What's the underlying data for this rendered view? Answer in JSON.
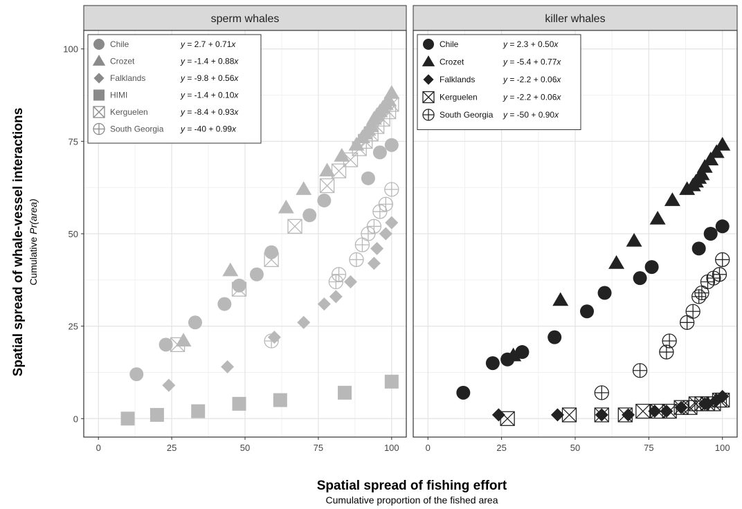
{
  "y_axis_title": "Spatial spread of whale-vessel interactions",
  "y_axis_subtitle_prefix": "Cumulative ",
  "y_axis_subtitle_italic": "Pr(area)",
  "x_axis_title": "Spatial spread of fishing effort",
  "x_axis_subtitle": "Cumulative proportion of the fished area",
  "chart_data": [
    {
      "type": "scatter",
      "title": "sperm whales",
      "xlim": [
        -5,
        105
      ],
      "ylim": [
        -5,
        105
      ],
      "x_ticks": [
        0,
        25,
        50,
        75,
        100
      ],
      "y_ticks": [
        0,
        25,
        50,
        75,
        100
      ],
      "x_tick_labels": [
        "0",
        "25",
        "50",
        "75",
        "100"
      ],
      "y_tick_labels": [
        "0",
        "25",
        "50",
        "75",
        "100"
      ],
      "grid": true,
      "legend_position": "top-left",
      "colors": {
        "points": "#b8b8b8",
        "legend_symbols": "#8a8a8a"
      },
      "series": [
        {
          "name": "Chile",
          "symbol": "circle",
          "equation": "y = 2.7 + 0.71x",
          "x": [
            13,
            23,
            33,
            43,
            48,
            54,
            59,
            72,
            77,
            92,
            96,
            100
          ],
          "y": [
            12,
            20,
            26,
            31,
            36,
            39,
            45,
            55,
            59,
            65,
            72,
            74
          ]
        },
        {
          "name": "Crozet",
          "symbol": "triangle",
          "equation": "y = -1.4 + 0.88x",
          "x": [
            29,
            45,
            64,
            70,
            78,
            83,
            88,
            90,
            91,
            92,
            93,
            94,
            95,
            96,
            97,
            98,
            99,
            100
          ],
          "y": [
            21,
            40,
            57,
            62,
            67,
            71,
            74,
            76,
            77,
            78,
            79,
            81,
            82,
            83,
            84,
            85,
            86,
            88
          ]
        },
        {
          "name": "Falklands",
          "symbol": "diamond",
          "equation": "y = -9.8 + 0.56x",
          "x": [
            24,
            44,
            60,
            70,
            77,
            81,
            86,
            94,
            95,
            98,
            100
          ],
          "y": [
            9,
            14,
            22,
            26,
            31,
            33,
            37,
            42,
            46,
            50,
            53
          ]
        },
        {
          "name": "HIMI",
          "symbol": "square",
          "equation": "y = -1.4 + 0.10x",
          "x": [
            10,
            20,
            34,
            48,
            62,
            84,
            100
          ],
          "y": [
            0,
            1,
            2,
            4,
            5,
            7,
            10
          ]
        },
        {
          "name": "Kerguelen",
          "symbol": "boxx",
          "equation": "y = -8.4 + 0.93x",
          "x": [
            27,
            48,
            59,
            67,
            78,
            82,
            86,
            89,
            91,
            93,
            95,
            97,
            99,
            100
          ],
          "y": [
            20,
            35,
            43,
            52,
            63,
            67,
            70,
            73,
            75,
            77,
            79,
            81,
            83,
            85
          ]
        },
        {
          "name": "South Georgia",
          "symbol": "circleplus",
          "equation": "y = -40 + 0.99x",
          "x": [
            59,
            81,
            82,
            88,
            90,
            92,
            94,
            96,
            98,
            100
          ],
          "y": [
            21,
            37,
            39,
            43,
            47,
            50,
            52,
            56,
            58,
            62
          ]
        }
      ]
    },
    {
      "type": "scatter",
      "title": "killer whales",
      "xlim": [
        -5,
        105
      ],
      "ylim": [
        -5,
        105
      ],
      "x_ticks": [
        0,
        25,
        50,
        75,
        100
      ],
      "y_ticks": [
        0,
        25,
        50,
        75,
        100
      ],
      "x_tick_labels": [
        "0",
        "25",
        "50",
        "75",
        "100"
      ],
      "y_tick_labels": [
        "0",
        "25",
        "50",
        "75",
        "100"
      ],
      "grid": true,
      "legend_position": "top-left",
      "colors": {
        "points": "#222222",
        "legend_symbols": "#222222"
      },
      "series": [
        {
          "name": "Chile",
          "symbol": "circle",
          "equation": "y = 2.3 + 0.50x",
          "x": [
            12,
            22,
            27,
            32,
            43,
            54,
            60,
            72,
            76,
            92,
            96,
            100
          ],
          "y": [
            7,
            15,
            16,
            18,
            22,
            29,
            34,
            38,
            41,
            46,
            50,
            52
          ]
        },
        {
          "name": "Crozet",
          "symbol": "triangle",
          "equation": "y = -5.4 + 0.77x",
          "x": [
            29,
            45,
            64,
            70,
            78,
            83,
            88,
            90,
            91,
            92,
            93,
            94,
            96,
            98,
            100
          ],
          "y": [
            17,
            32,
            42,
            48,
            54,
            59,
            62,
            63,
            64,
            65,
            66,
            68,
            70,
            72,
            74
          ]
        },
        {
          "name": "Falklands",
          "symbol": "diamond",
          "equation": "y = -2.2 + 0.06x",
          "x": [
            24,
            44,
            59,
            68,
            77,
            81,
            86,
            94,
            95,
            98,
            100
          ],
          "y": [
            1,
            1,
            1,
            1,
            2,
            2,
            3,
            4,
            4,
            5,
            6
          ]
        },
        {
          "name": "Kerguelen",
          "symbol": "boxx",
          "equation": "y = -2.2 + 0.06x",
          "x": [
            27,
            48,
            59,
            67,
            73,
            78,
            82,
            86,
            89,
            91,
            93,
            95,
            97,
            99,
            100
          ],
          "y": [
            0,
            1,
            1,
            1,
            2,
            2,
            2,
            3,
            3,
            4,
            4,
            4,
            4,
            5,
            5
          ]
        },
        {
          "name": "South Georgia",
          "symbol": "circleplus",
          "equation": "y = -50 + 0.90x",
          "x": [
            59,
            72,
            81,
            82,
            88,
            90,
            92,
            93,
            95,
            97,
            99,
            100
          ],
          "y": [
            7,
            13,
            18,
            21,
            26,
            29,
            33,
            34,
            37,
            38,
            39,
            43
          ]
        }
      ]
    }
  ]
}
